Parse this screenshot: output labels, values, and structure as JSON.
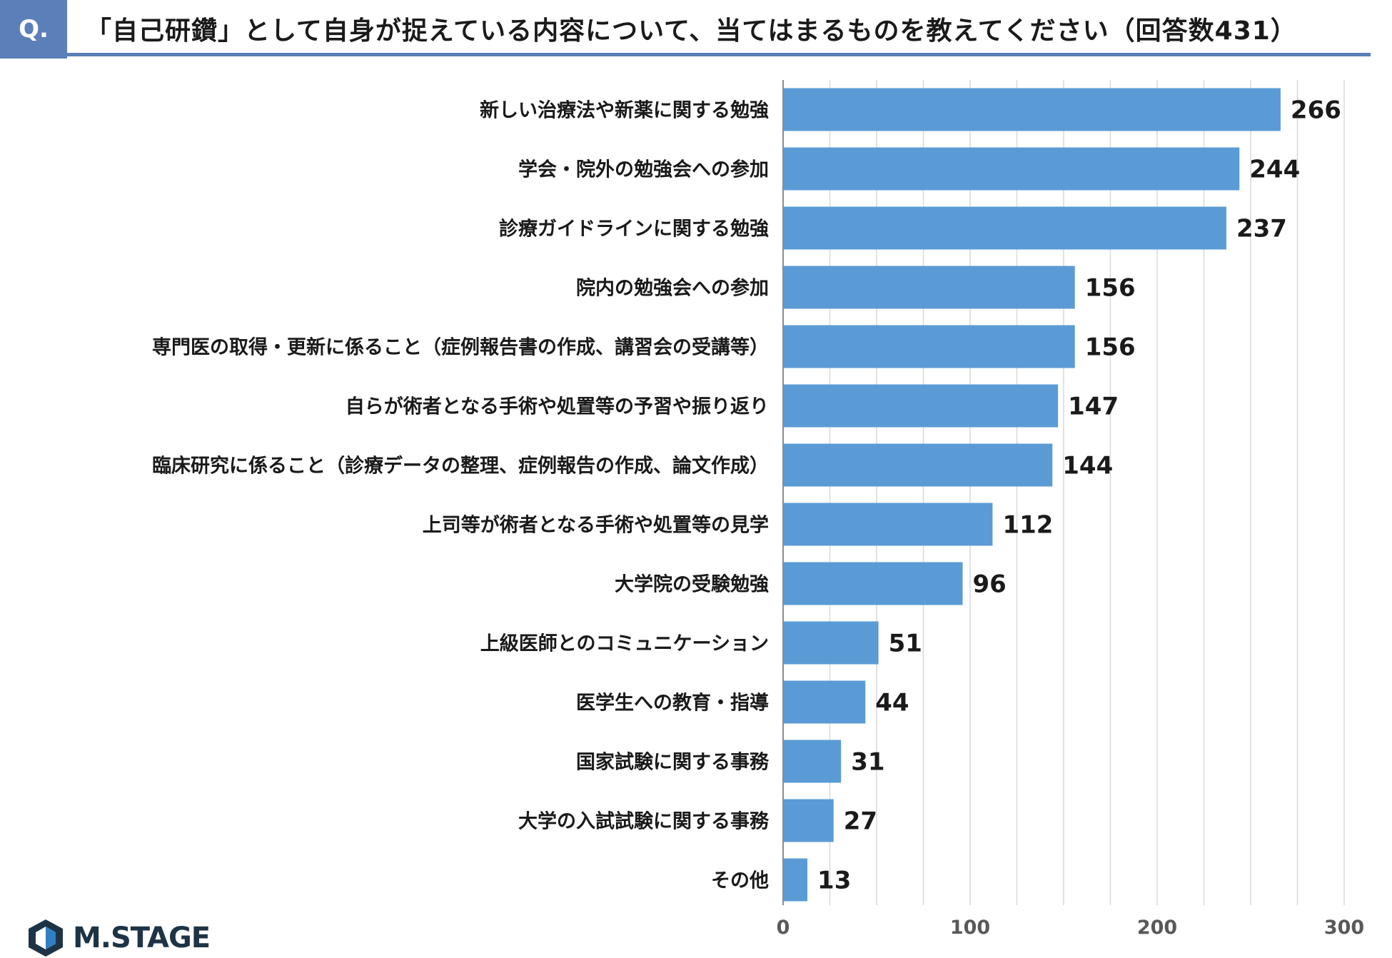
{
  "header": {
    "q_label": "Q.",
    "title": "「自己研鑽」として自身が捉えている内容について、当てはまるものを教えてください（回答数431）"
  },
  "brand": {
    "name": "M.STAGE"
  },
  "colors": {
    "bar": "#5b9bd5",
    "accent": "#5b7fb8",
    "grid": "#d9d9d9"
  },
  "chart_data": {
    "type": "bar",
    "orientation": "horizontal",
    "categories": [
      "新しい治療法や新薬に関する勉強",
      "学会・院外の勉強会への参加",
      "診療ガイドラインに関する勉強",
      "院内の勉強会への参加",
      "専門医の取得・更新に係ること（症例報告書の作成、講習会の受講等）",
      "自らが術者となる手術や処置等の予習や振り返り",
      "臨床研究に係ること（診療データの整理、症例報告の作成、論文作成）",
      "上司等が術者となる手術や処置等の見学",
      "大学院の受験勉強",
      "上級医師とのコミュニケーション",
      "医学生への教育・指導",
      "国家試験に関する事務",
      "大学の入試試験に関する事務",
      "その他"
    ],
    "values": [
      266,
      244,
      237,
      156,
      156,
      147,
      144,
      112,
      96,
      51,
      44,
      31,
      27,
      13
    ],
    "xlim": [
      0,
      300
    ],
    "xticks": [
      0,
      100,
      200,
      300
    ],
    "grid": true,
    "data_labels": true
  }
}
